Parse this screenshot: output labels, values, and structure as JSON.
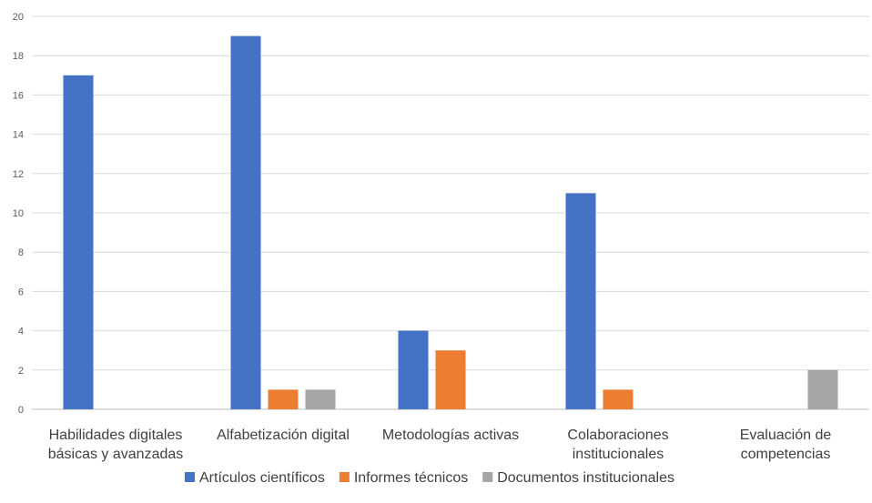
{
  "chart_data": {
    "type": "bar",
    "categories": [
      [
        "Habilidades digitales",
        "básicas y avanzadas"
      ],
      [
        "Alfabetización digital"
      ],
      [
        "Metodologías activas"
      ],
      [
        "Colaboraciones",
        "institucionales"
      ],
      [
        "Evaluación de",
        "competencias"
      ]
    ],
    "series": [
      {
        "name": "Artículos científicos",
        "color": "#4472C4",
        "values": [
          17,
          19,
          4,
          11,
          0
        ]
      },
      {
        "name": "Informes técnicos",
        "color": "#ED7D31",
        "values": [
          0,
          1,
          3,
          1,
          0
        ]
      },
      {
        "name": "Documentos institucionales",
        "color": "#A5A5A5",
        "values": [
          0,
          1,
          0,
          0,
          2
        ]
      }
    ],
    "ylim": [
      0,
      20
    ],
    "yticks": [
      0,
      2,
      4,
      6,
      8,
      10,
      12,
      14,
      16,
      18,
      20
    ],
    "grid": true,
    "legend": "bottom",
    "title": "",
    "xlabel": "",
    "ylabel": ""
  }
}
